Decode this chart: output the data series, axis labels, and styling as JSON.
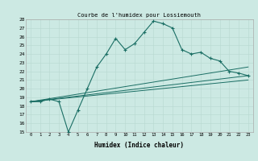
{
  "title": "Courbe de l'humidex pour Lossiemouth",
  "xlabel": "Humidex (Indice chaleur)",
  "x_ticks": [
    0,
    1,
    2,
    3,
    4,
    5,
    6,
    7,
    8,
    9,
    10,
    11,
    12,
    13,
    14,
    15,
    16,
    17,
    18,
    19,
    20,
    21,
    22,
    23
  ],
  "ylim": [
    15,
    28
  ],
  "yticks": [
    15,
    16,
    17,
    18,
    19,
    20,
    21,
    22,
    23,
    24,
    25,
    26,
    27,
    28
  ],
  "bg_color": "#cce9e3",
  "line_color": "#1a6e64",
  "main_line": {
    "x": [
      0,
      1,
      2,
      3,
      4,
      5,
      6,
      7,
      8,
      9,
      10,
      11,
      12,
      13,
      14,
      15,
      16,
      17,
      18,
      19,
      20,
      21,
      22,
      23
    ],
    "y": [
      18.5,
      18.5,
      18.8,
      18.5,
      15.0,
      17.5,
      20.0,
      22.5,
      24.0,
      25.8,
      24.5,
      25.2,
      26.5,
      27.8,
      27.5,
      27.0,
      24.5,
      24.0,
      24.2,
      23.5,
      23.2,
      22.0,
      21.8,
      21.5
    ]
  },
  "trend_line1": {
    "x": [
      0,
      23
    ],
    "y": [
      18.5,
      22.5
    ]
  },
  "trend_line2": {
    "x": [
      0,
      23
    ],
    "y": [
      18.5,
      21.5
    ]
  },
  "trend_line3": {
    "x": [
      0,
      23
    ],
    "y": [
      18.5,
      21.0
    ]
  }
}
